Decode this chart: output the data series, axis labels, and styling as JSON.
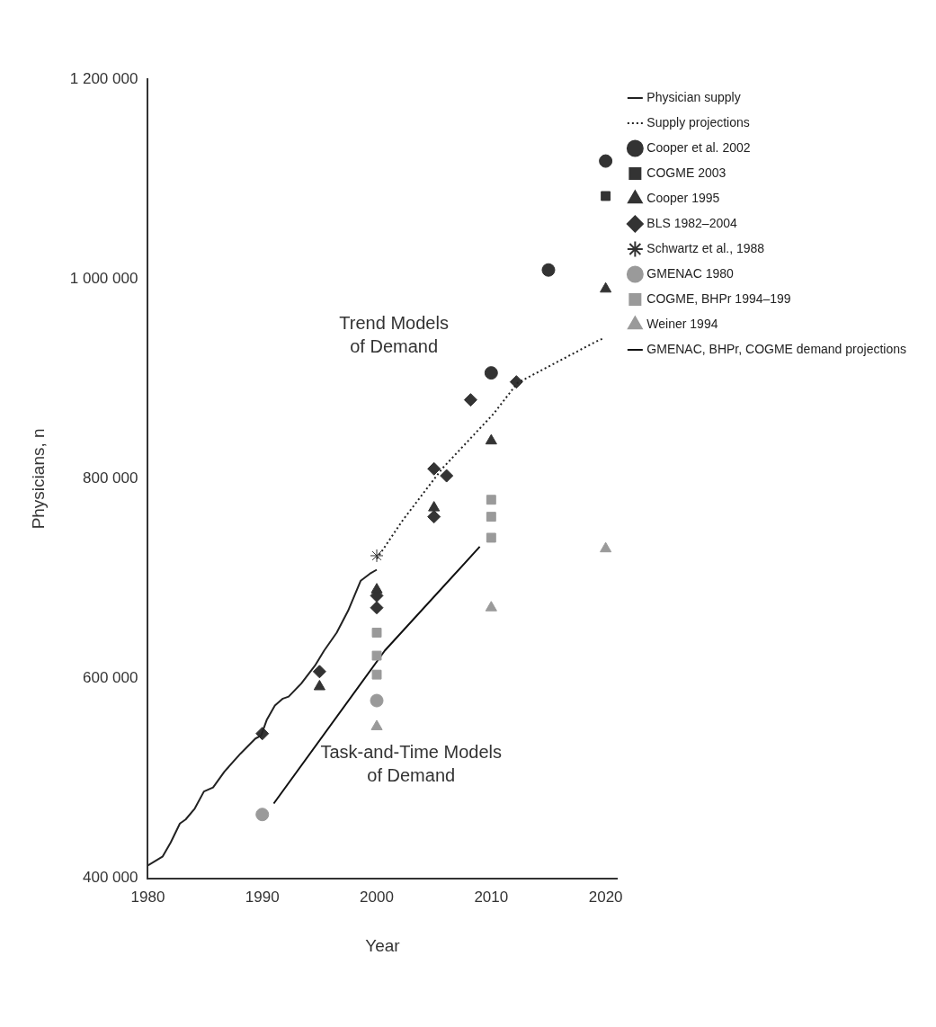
{
  "chart_data": {
    "type": "scatter",
    "xlabel": "Year",
    "ylabel": "Physicians, n",
    "xlim": [
      1980,
      2021
    ],
    "xticks": [
      1980,
      1990,
      2000,
      2010,
      2020
    ],
    "ylim": [
      400000,
      1200000
    ],
    "yticks": [
      {
        "value": 400000,
        "label": "400 000"
      },
      {
        "value": 600000,
        "label": "600 000"
      },
      {
        "value": 800000,
        "label": "800 000"
      },
      {
        "value": 1000000,
        "label": "1 000 000"
      },
      {
        "value": 1200000,
        "label": "1 200 000"
      }
    ],
    "grid": false,
    "legend": "right",
    "annotations": [
      "Trend Models of Demand",
      "Task-and-Time Models of Demand"
    ],
    "series": [
      {
        "name": "Physician supply",
        "type": "line",
        "line_style": "solid",
        "marker": "none",
        "color": "#222222",
        "x": [
          1980,
          1981.3,
          1982,
          1982.8,
          1983.3,
          1984.1,
          1984.9,
          1985.7,
          1986.7,
          1988.1,
          1989.4,
          1989.9,
          1990.4,
          1991.1,
          1991.8,
          1992.3,
          1993.4,
          1994.6,
          1995.4,
          1996.5,
          1997.5,
          1998.6,
          1999.4,
          2000
        ],
        "values": [
          413000,
          422000,
          436000,
          455000,
          459000,
          470000,
          487000,
          491000,
          507000,
          525000,
          540000,
          543000,
          559000,
          573000,
          580000,
          582000,
          595000,
          613000,
          628000,
          646000,
          668000,
          698000,
          705000,
          709000
        ]
      },
      {
        "name": "Supply projections",
        "type": "line",
        "line_style": "dotted",
        "marker": "none",
        "color": "#222222",
        "x": [
          2000,
          2002.3,
          2005.7,
          2010.2,
          2012.3,
          2019.1,
          2019.7
        ],
        "values": [
          720000,
          759000,
          810000,
          865000,
          896000,
          937000,
          940000
        ]
      },
      {
        "name": "Cooper et al. 2002",
        "type": "scatter",
        "marker": "circle",
        "color": "#333333",
        "x": [
          2010,
          2015,
          2020
        ],
        "values": [
          906000,
          1009000,
          1118000
        ]
      },
      {
        "name": "COGME 2003",
        "type": "scatter",
        "marker": "square",
        "color": "#333333",
        "x": [
          2020
        ],
        "values": [
          1083000
        ]
      },
      {
        "name": "Cooper 1995",
        "type": "scatter",
        "marker": "triangle",
        "color": "#333333",
        "x": [
          1995,
          2000,
          2005,
          2010,
          2020
        ],
        "values": [
          592000,
          689000,
          771000,
          838000,
          990000
        ]
      },
      {
        "name": "BLS 1982–2004",
        "type": "scatter",
        "marker": "diamond",
        "color": "#333333",
        "x": [
          1990,
          1995,
          2000,
          2000,
          2005,
          2005,
          2006.1,
          2008.2,
          2012.2
        ],
        "values": [
          545000,
          607000,
          683000,
          671000,
          810000,
          762000,
          803000,
          879000,
          897000
        ]
      },
      {
        "name": "Schwartz et al., 1988",
        "type": "scatter",
        "marker": "cross",
        "color": "#333333",
        "x": [
          2000
        ],
        "values": [
          723000
        ]
      },
      {
        "name": "GMENAC 1980",
        "type": "scatter",
        "marker": "circle",
        "color": "#9a9a9a",
        "x": [
          1990,
          2000
        ],
        "values": [
          464000,
          578000
        ]
      },
      {
        "name": "COGME, BHPr 1994–199",
        "type": "scatter",
        "marker": "square",
        "color": "#9a9a9a",
        "x": [
          2000,
          2000,
          2000,
          2010,
          2010,
          2010
        ],
        "values": [
          646000,
          623000,
          604000,
          779000,
          762000,
          741000
        ]
      },
      {
        "name": "Weiner 1994",
        "type": "scatter",
        "marker": "triangle",
        "color": "#9a9a9a",
        "x": [
          2000,
          2010,
          2020
        ],
        "values": [
          552000,
          671000,
          730000
        ]
      },
      {
        "name": "GMENAC, BHPr, COGME demand projections",
        "type": "line",
        "line_style": "solid",
        "marker": "none",
        "color": "#111111",
        "x": [
          1991,
          2000.7,
          2009
        ],
        "values": [
          475000,
          628000,
          732000
        ]
      }
    ]
  }
}
